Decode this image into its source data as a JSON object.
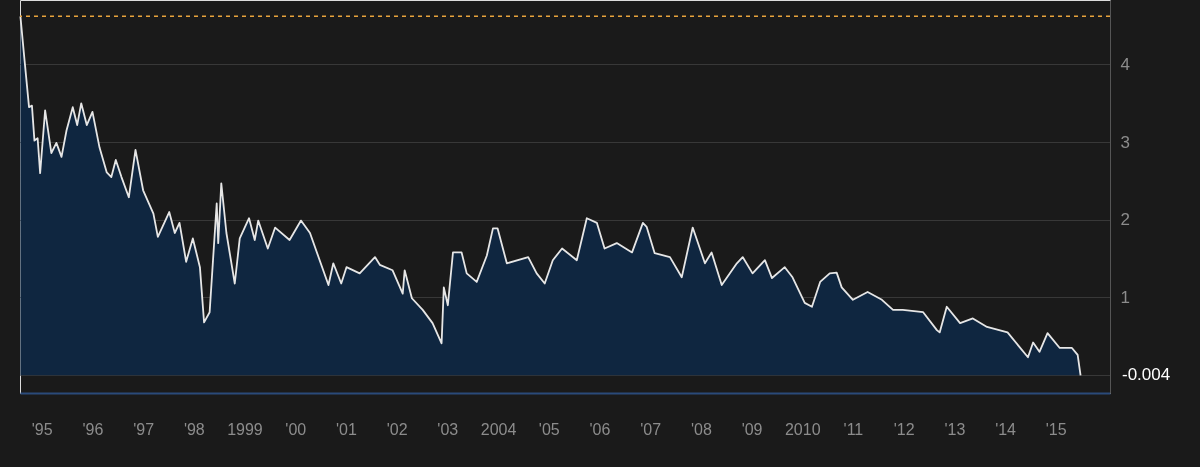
{
  "chart_data": {
    "type": "area",
    "x": [
      "1995-01-29",
      "1995-02-28",
      "1995-04-01",
      "1995-04-22",
      "1995-05-10",
      "1995-06-02",
      "1995-06-20",
      "1995-07-26",
      "1995-09-09",
      "1995-10-15",
      "1995-11-21",
      "1995-12-27",
      "1996-02-10",
      "1996-03-13",
      "1996-04-11",
      "1996-05-21",
      "1996-07-01",
      "1996-08-21",
      "1996-10-12",
      "1996-11-14",
      "1996-12-16",
      "1997-01-26",
      "1997-03-20",
      "1997-05-07",
      "1997-07-01",
      "1997-09-13",
      "1997-10-15",
      "1998-01-05",
      "1998-02-14",
      "1998-03-20",
      "1998-05-07",
      "1998-06-24",
      "1998-08-14",
      "1998-09-13",
      "1998-10-23",
      "1998-12-13",
      "1998-12-24",
      "1999-01-15",
      "1999-02-21",
      "1999-04-22",
      "1999-05-28",
      "1999-08-03",
      "1999-09-13",
      "1999-10-08",
      "1999-12-16",
      "2000-02-07",
      "2000-05-21",
      "2000-08-11",
      "2000-10-15",
      "2001-02-25",
      "2001-04-01",
      "2001-05-28",
      "2001-07-05",
      "2001-10-08",
      "2002-01-26",
      "2002-03-02",
      "2002-06-02",
      "2002-08-14",
      "2002-08-28",
      "2002-10-19",
      "2003-01-05",
      "2003-03-17",
      "2003-05-21",
      "2003-06-06",
      "2003-07-05",
      "2003-08-11",
      "2003-10-12",
      "2003-11-18",
      "2004-01-29",
      "2004-04-11",
      "2004-05-25",
      "2004-06-27",
      "2004-09-02",
      "2005-02-03",
      "2005-04-05",
      "2005-06-02",
      "2005-07-30",
      "2005-10-05",
      "2006-01-19",
      "2006-04-01",
      "2006-06-13",
      "2006-08-07",
      "2006-11-03",
      "2007-02-21",
      "2007-05-10",
      "2007-06-06",
      "2007-08-03",
      "2007-11-21",
      "2008-02-14",
      "2008-05-03",
      "2008-07-30",
      "2008-09-16",
      "2008-11-28",
      "2009-03-17",
      "2009-04-28",
      "2009-07-08",
      "2009-10-05",
      "2009-11-25",
      "2010-02-25",
      "2010-04-22",
      "2010-07-19",
      "2010-09-09",
      "2010-11-07",
      "2011-01-15",
      "2011-03-06",
      "2011-04-11",
      "2011-07-01",
      "2011-10-15",
      "2012-01-26",
      "2012-04-15",
      "2012-06-24",
      "2012-11-18",
      "2013-02-25",
      "2013-03-17",
      "2013-05-07",
      "2013-08-11",
      "2013-11-11",
      "2014-02-21",
      "2014-07-19",
      "2014-12-13",
      "2015-01-19",
      "2015-03-06",
      "2015-05-03",
      "2015-07-30",
      "2015-10-26",
      "2015-12-06",
      "2015-12-27"
    ],
    "series": [
      {
        "color": "#0f2640",
        "values": [
          4.62,
          4.05,
          3.45,
          3.47,
          3.02,
          3.05,
          2.6,
          3.41,
          2.86,
          2.99,
          2.81,
          3.15,
          3.45,
          3.22,
          3.5,
          3.22,
          3.39,
          2.93,
          2.61,
          2.55,
          2.77,
          2.55,
          2.29,
          2.9,
          2.38,
          2.08,
          1.78,
          2.1,
          1.83,
          1.96,
          1.46,
          1.76,
          1.39,
          0.68,
          0.81,
          2.21,
          1.7,
          2.47,
          1.83,
          1.18,
          1.76,
          2.02,
          1.74,
          1.99,
          1.63,
          1.9,
          1.74,
          1.99,
          1.83,
          1.16,
          1.44,
          1.18,
          1.39,
          1.31,
          1.52,
          1.42,
          1.35,
          1.05,
          1.35,
          0.99,
          0.84,
          0.67,
          0.41,
          1.13,
          0.9,
          1.58,
          1.58,
          1.31,
          1.2,
          1.54,
          1.89,
          1.89,
          1.44,
          1.52,
          1.31,
          1.18,
          1.48,
          1.63,
          1.48,
          2.02,
          1.96,
          1.63,
          1.7,
          1.58,
          1.96,
          1.91,
          1.57,
          1.52,
          1.26,
          1.9,
          1.44,
          1.58,
          1.16,
          1.44,
          1.52,
          1.31,
          1.48,
          1.25,
          1.39,
          1.26,
          0.93,
          0.88,
          1.2,
          1.31,
          1.32,
          1.13,
          0.97,
          1.07,
          0.97,
          0.84,
          0.84,
          0.81,
          0.58,
          0.55,
          0.88,
          0.67,
          0.73,
          0.62,
          0.55,
          0.23,
          0.42,
          0.3,
          0.54,
          0.35,
          0.35,
          0.26,
          -0.004
        ]
      }
    ],
    "xlim": [
      "1995-01-26",
      "2016-07-26"
    ],
    "xticks": [
      {
        "value": "1995-07-01",
        "label": "'95"
      },
      {
        "value": "1996-07-01",
        "label": "'96"
      },
      {
        "value": "1997-07-01",
        "label": "'97"
      },
      {
        "value": "1998-07-01",
        "label": "'98"
      },
      {
        "value": "1999-07-01",
        "label": "1999"
      },
      {
        "value": "2000-07-01",
        "label": "'00"
      },
      {
        "value": "2001-07-01",
        "label": "'01"
      },
      {
        "value": "2002-07-01",
        "label": "'02"
      },
      {
        "value": "2003-07-01",
        "label": "'03"
      },
      {
        "value": "2004-07-01",
        "label": "2004"
      },
      {
        "value": "2005-07-01",
        "label": "'05"
      },
      {
        "value": "2006-07-01",
        "label": "'06"
      },
      {
        "value": "2007-07-01",
        "label": "'07"
      },
      {
        "value": "2008-07-01",
        "label": "'08"
      },
      {
        "value": "2009-07-01",
        "label": "'09"
      },
      {
        "value": "2010-07-01",
        "label": "2010"
      },
      {
        "value": "2011-07-01",
        "label": "'11"
      },
      {
        "value": "2012-07-01",
        "label": "'12"
      },
      {
        "value": "2013-07-01",
        "label": "'13"
      },
      {
        "value": "2014-07-01",
        "label": "'14"
      },
      {
        "value": "2015-07-01",
        "label": "'15"
      }
    ],
    "ylim": [
      -0.23,
      4.83
    ],
    "yticks": [
      {
        "value": 0,
        "label": null
      },
      1,
      2,
      3,
      4
    ],
    "grid": "y",
    "ref_lines": [
      {
        "axis": "y",
        "value": 4.62,
        "color": "#e8a33c",
        "line_style": "dashed"
      }
    ],
    "annotations": [
      {
        "text": "-0.004",
        "x": "2015-12-27",
        "y": -0.004
      }
    ]
  }
}
